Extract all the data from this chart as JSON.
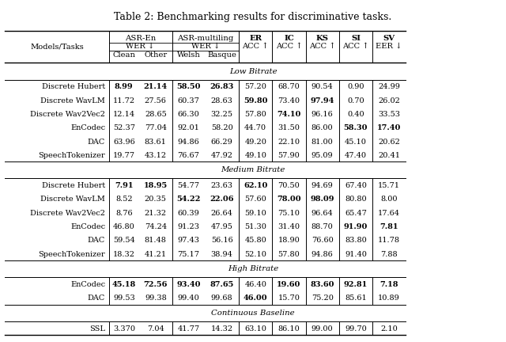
{
  "title": "Table 2: Benchmarking results for discriminative tasks.",
  "sections": [
    {
      "label": "Low Bitrate",
      "rows": [
        {
          "model": "Discrete Hubert",
          "vals": [
            "8.99",
            "21.14",
            "58.50",
            "26.83",
            "57.20",
            "68.70",
            "90.54",
            "0.90",
            "24.99"
          ],
          "bold": [
            true,
            true,
            true,
            true,
            false,
            false,
            false,
            false,
            false
          ]
        },
        {
          "model": "Discrete WavLM",
          "vals": [
            "11.72",
            "27.56",
            "60.37",
            "28.63",
            "59.80",
            "73.40",
            "97.94",
            "0.70",
            "26.02"
          ],
          "bold": [
            false,
            false,
            false,
            false,
            true,
            false,
            true,
            false,
            false
          ]
        },
        {
          "model": "Discrete Wav2Vec2",
          "vals": [
            "12.14",
            "28.65",
            "66.30",
            "32.25",
            "57.80",
            "74.10",
            "96.16",
            "0.40",
            "33.53"
          ],
          "bold": [
            false,
            false,
            false,
            false,
            false,
            true,
            false,
            false,
            false
          ]
        },
        {
          "model": "EnCodec",
          "vals": [
            "52.37",
            "77.04",
            "92.01",
            "58.20",
            "44.70",
            "31.50",
            "86.00",
            "58.30",
            "17.40"
          ],
          "bold": [
            false,
            false,
            false,
            false,
            false,
            false,
            false,
            true,
            true
          ]
        },
        {
          "model": "DAC",
          "vals": [
            "63.96",
            "83.61",
            "94.86",
            "66.29",
            "49.20",
            "22.10",
            "81.00",
            "45.10",
            "20.62"
          ],
          "bold": [
            false,
            false,
            false,
            false,
            false,
            false,
            false,
            false,
            false
          ]
        },
        {
          "model": "SpeechTokenizer",
          "vals": [
            "19.77",
            "43.12",
            "76.67",
            "47.92",
            "49.10",
            "57.90",
            "95.09",
            "47.40",
            "20.41"
          ],
          "bold": [
            false,
            false,
            false,
            false,
            false,
            false,
            false,
            false,
            false
          ]
        }
      ]
    },
    {
      "label": "Medium Bitrate",
      "rows": [
        {
          "model": "Discrete Hubert",
          "vals": [
            "7.91",
            "18.95",
            "54.77",
            "23.63",
            "62.10",
            "70.50",
            "94.69",
            "67.40",
            "15.71"
          ],
          "bold": [
            true,
            true,
            false,
            false,
            true,
            false,
            false,
            false,
            false
          ]
        },
        {
          "model": "Discrete WavLM",
          "vals": [
            "8.52",
            "20.35",
            "54.22",
            "22.06",
            "57.60",
            "78.00",
            "98.09",
            "80.80",
            "8.00"
          ],
          "bold": [
            false,
            false,
            true,
            true,
            false,
            true,
            true,
            false,
            false
          ]
        },
        {
          "model": "Discrete Wav2Vec2",
          "vals": [
            "8.76",
            "21.32",
            "60.39",
            "26.64",
            "59.10",
            "75.10",
            "96.64",
            "65.47",
            "17.64"
          ],
          "bold": [
            false,
            false,
            false,
            false,
            false,
            false,
            false,
            false,
            false
          ]
        },
        {
          "model": "EnCodec",
          "vals": [
            "46.80",
            "74.24",
            "91.23",
            "47.95",
            "51.30",
            "31.40",
            "88.70",
            "91.90",
            "7.81"
          ],
          "bold": [
            false,
            false,
            false,
            false,
            false,
            false,
            false,
            true,
            true
          ]
        },
        {
          "model": "DAC",
          "vals": [
            "59.54",
            "81.48",
            "97.43",
            "56.16",
            "45.80",
            "18.90",
            "76.60",
            "83.80",
            "11.78"
          ],
          "bold": [
            false,
            false,
            false,
            false,
            false,
            false,
            false,
            false,
            false
          ]
        },
        {
          "model": "SpeechTokenizer",
          "vals": [
            "18.32",
            "41.21",
            "75.17",
            "38.94",
            "52.10",
            "57.80",
            "94.86",
            "91.40",
            "7.88"
          ],
          "bold": [
            false,
            false,
            false,
            false,
            false,
            false,
            false,
            false,
            false
          ]
        }
      ]
    },
    {
      "label": "High Bitrate",
      "rows": [
        {
          "model": "EnCodec",
          "vals": [
            "45.18",
            "72.56",
            "93.40",
            "87.65",
            "46.40",
            "19.60",
            "83.60",
            "92.81",
            "7.18"
          ],
          "bold": [
            true,
            true,
            true,
            true,
            false,
            true,
            true,
            true,
            true
          ]
        },
        {
          "model": "DAC",
          "vals": [
            "99.53",
            "99.38",
            "99.40",
            "99.68",
            "46.00",
            "15.70",
            "75.20",
            "85.61",
            "10.89"
          ],
          "bold": [
            false,
            false,
            false,
            false,
            true,
            false,
            false,
            false,
            false
          ]
        }
      ]
    },
    {
      "label": "Continuous Baseline",
      "rows": [
        {
          "model": "SSL",
          "vals": [
            "3.370",
            "7.04",
            "41.77",
            "14.32",
            "63.10",
            "86.10",
            "99.00",
            "99.70",
            "2.10"
          ],
          "bold": [
            false,
            false,
            false,
            false,
            false,
            false,
            false,
            false,
            false
          ]
        }
      ]
    }
  ]
}
